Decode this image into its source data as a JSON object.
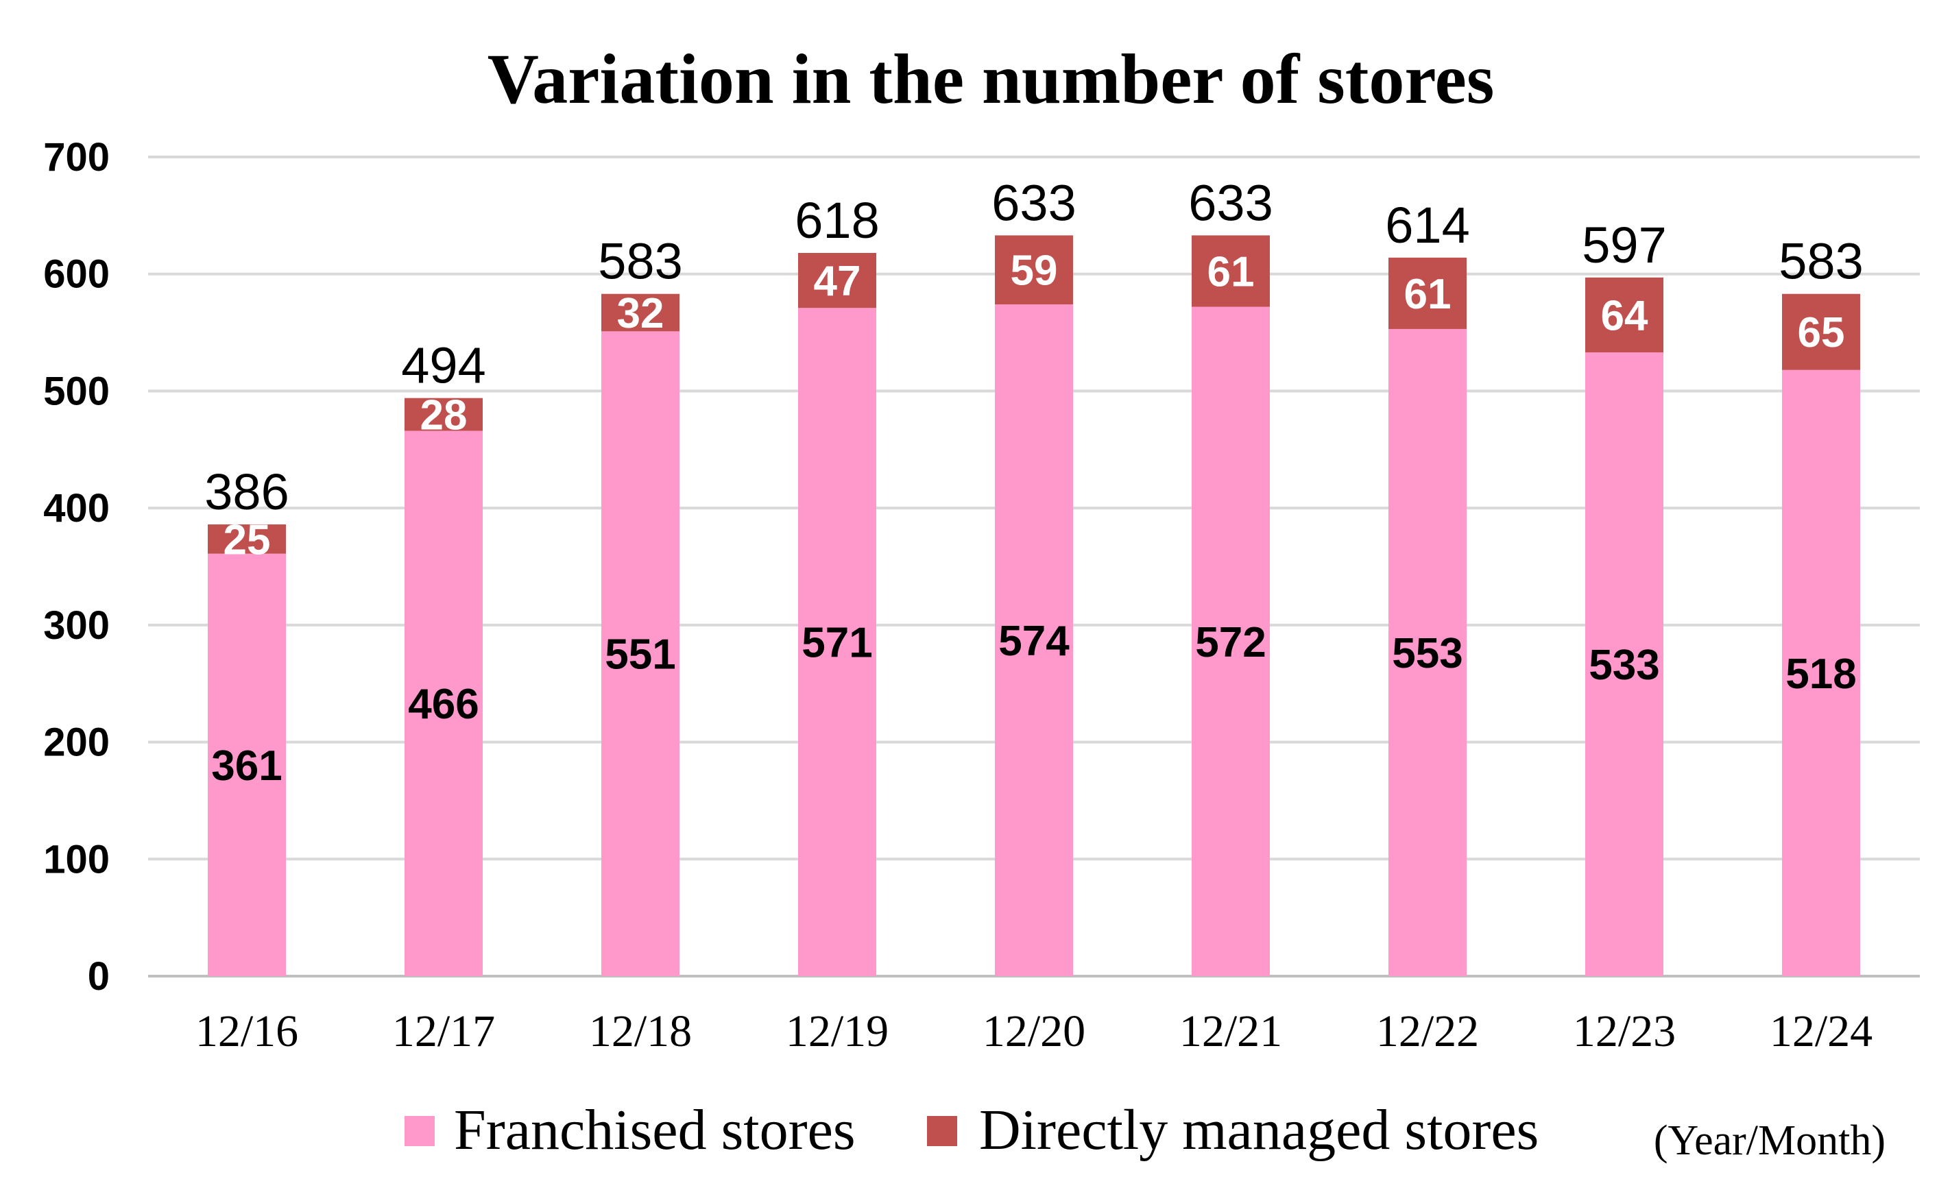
{
  "chart_data": {
    "type": "bar",
    "stacked": true,
    "title": "Variation in the number of stores",
    "unit_note": "(Year/Month)",
    "categories": [
      "12/16",
      "12/17",
      "12/18",
      "12/19",
      "12/20",
      "12/21",
      "12/22",
      "12/23",
      "12/24"
    ],
    "series": [
      {
        "name": "Franchised stores",
        "color": "#ff99cc",
        "values": [
          361,
          466,
          551,
          571,
          574,
          572,
          553,
          533,
          518
        ]
      },
      {
        "name": "Directly managed stores",
        "color": "#c0504d",
        "values": [
          25,
          28,
          32,
          47,
          59,
          61,
          61,
          64,
          65
        ]
      }
    ],
    "totals": [
      386,
      494,
      583,
      618,
      633,
      633,
      614,
      597,
      583
    ],
    "ylim": [
      0,
      700
    ],
    "yticks": [
      0,
      100,
      200,
      300,
      400,
      500,
      600,
      700
    ],
    "grid": true,
    "legend": "bottom"
  }
}
